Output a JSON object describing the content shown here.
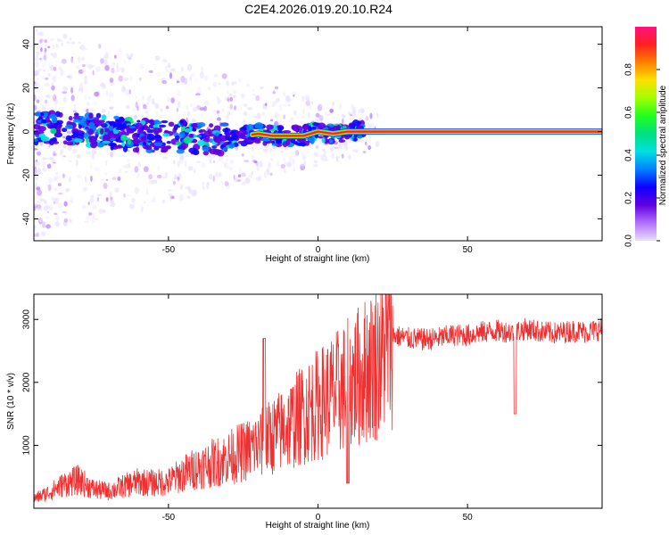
{
  "title": "C2E4.2026.019.20.10.R24",
  "colors": {
    "snr_line": "#f03030",
    "colormap": [
      "#e8e0ff",
      "#b070ff",
      "#6000e0",
      "#1000ff",
      "#0080ff",
      "#00e0e0",
      "#00e080",
      "#20ff20",
      "#a0ff00",
      "#ffe000",
      "#ff8000",
      "#ff2020",
      "#ff1080"
    ]
  },
  "chart_data": [
    {
      "type": "heatmap",
      "xlabel": "Height of straight line (km)",
      "ylabel": "Frequency (Hz)",
      "xlim": [
        -95,
        95
      ],
      "ylim": [
        -50,
        48
      ],
      "x_ticks": [
        -50,
        0,
        50
      ],
      "y_ticks": [
        -40,
        -20,
        0,
        20,
        40
      ],
      "x_tick_labels": [
        "-50",
        "0",
        "50"
      ],
      "y_tick_labels": [
        "-40",
        "-20",
        "0",
        "20",
        "40"
      ],
      "colorbar": {
        "label": "Normalized spectral amplitude",
        "range": [
          0,
          1
        ],
        "ticks": [
          0.0,
          0.2,
          0.4,
          0.6,
          0.8
        ],
        "tick_labels": [
          "0.0",
          "0.2",
          "0.4",
          "0.6",
          "0.8"
        ]
      },
      "ridge": [
        {
          "x": -95,
          "f": 2
        },
        {
          "x": -80,
          "f": 1
        },
        {
          "x": -70,
          "f": 0
        },
        {
          "x": -60,
          "f": -2
        },
        {
          "x": -50,
          "f": -2
        },
        {
          "x": -40,
          "f": -3
        },
        {
          "x": -30,
          "f": -3
        },
        {
          "x": -20,
          "f": -1
        },
        {
          "x": -15,
          "f": -2
        },
        {
          "x": -10,
          "f": -2
        },
        {
          "x": -5,
          "f": -2
        },
        {
          "x": 0,
          "f": 0
        },
        {
          "x": 5,
          "f": -1
        },
        {
          "x": 10,
          "f": 0
        },
        {
          "x": 20,
          "f": 0
        },
        {
          "x": 50,
          "f": 0
        },
        {
          "x": 95,
          "f": 0
        }
      ]
    },
    {
      "type": "line",
      "xlabel": "Height of straight line (km)",
      "ylabel": "SNR (10 * v/v)",
      "xlim": [
        -95,
        95
      ],
      "ylim": [
        0,
        3400
      ],
      "x_ticks": [
        -50,
        0,
        50
      ],
      "y_ticks": [
        1000,
        2000,
        3000
      ],
      "x_tick_labels": [
        "-50",
        "0",
        "50"
      ],
      "y_tick_labels": [
        "1000",
        "2000",
        "3000"
      ],
      "series": [
        {
          "x": [
            -95,
            -90,
            -85,
            -80,
            -75,
            -70,
            -65,
            -60,
            -55,
            -50,
            -45,
            -40,
            -35,
            -30,
            -25,
            -20,
            -15,
            -10,
            -5,
            0,
            5,
            10,
            15,
            20,
            25,
            30,
            35,
            40,
            45,
            50,
            55,
            60,
            65,
            70,
            75,
            80,
            85,
            90,
            95
          ],
          "y": [
            150,
            250,
            380,
            450,
            300,
            270,
            350,
            420,
            400,
            420,
            550,
            650,
            720,
            800,
            900,
            1000,
            1150,
            1300,
            1500,
            1650,
            1800,
            1950,
            2150,
            2350,
            2750,
            2700,
            2680,
            2700,
            2750,
            2750,
            2800,
            2820,
            2800,
            2850,
            2800,
            2780,
            2820,
            2800,
            2850
          ]
        }
      ],
      "annotations": [
        {
          "x": -18,
          "y": 2700
        },
        {
          "x": 10,
          "y": 400
        },
        {
          "x": 66,
          "y": 1500
        }
      ]
    }
  ]
}
